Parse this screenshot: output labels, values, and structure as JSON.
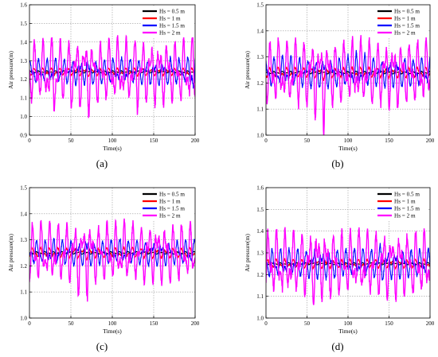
{
  "chart_data": [
    {
      "panel_label": "(a)",
      "type": "line",
      "xlabel": "Time(s)",
      "ylabel": "Air pressure(m)",
      "xlim": [
        0,
        200
      ],
      "ylim": [
        0.9,
        1.6
      ],
      "xticks": [
        0,
        50,
        100,
        150,
        200
      ],
      "yticks": [
        0.9,
        1.0,
        1.1,
        1.2,
        1.3,
        1.4,
        1.5,
        1.6
      ],
      "grid": true,
      "legend_position": "top-right",
      "series": [
        {
          "name": "Hs = 0.5 m",
          "color": "#000000",
          "mean": 1.24,
          "amp": 0.006,
          "x": [
            0,
            10,
            20,
            30,
            40,
            50,
            60,
            70,
            80,
            90,
            100,
            110,
            120,
            130,
            140,
            150,
            160,
            170,
            180,
            190,
            200
          ],
          "values": [
            1.24,
            1.241,
            1.239,
            1.242,
            1.238,
            1.241,
            1.24,
            1.242,
            1.238,
            1.241,
            1.24,
            1.239,
            1.242,
            1.24,
            1.241,
            1.239,
            1.241,
            1.24,
            1.242,
            1.239,
            1.24
          ]
        },
        {
          "name": "Hs = 1 m",
          "color": "#ff0000",
          "mean": 1.24,
          "amp": 0.02,
          "x": [
            0,
            10,
            20,
            30,
            40,
            50,
            60,
            70,
            80,
            90,
            100,
            110,
            120,
            130,
            140,
            150,
            160,
            170,
            180,
            190,
            200
          ],
          "values": [
            1.25,
            1.22,
            1.26,
            1.21,
            1.26,
            1.22,
            1.25,
            1.21,
            1.26,
            1.22,
            1.25,
            1.22,
            1.26,
            1.21,
            1.25,
            1.22,
            1.26,
            1.22,
            1.25,
            1.21,
            1.24
          ]
        },
        {
          "name": "Hs = 1.5 m",
          "color": "#0000ff",
          "mean": 1.24,
          "amp": 0.07,
          "x": [
            0,
            10,
            20,
            30,
            40,
            50,
            60,
            70,
            80,
            90,
            100,
            110,
            120,
            130,
            140,
            150,
            160,
            170,
            180,
            190,
            200
          ],
          "values": [
            1.26,
            1.16,
            1.3,
            1.13,
            1.32,
            1.15,
            1.35,
            1.13,
            1.31,
            1.16,
            1.33,
            1.14,
            1.34,
            1.15,
            1.32,
            1.16,
            1.31,
            1.14,
            1.33,
            1.17,
            1.06
          ]
        },
        {
          "name": "Hs = 2 m",
          "color": "#ff00ff",
          "mean": 1.24,
          "amp": 0.18,
          "x": [
            0,
            10,
            20,
            30,
            40,
            50,
            60,
            70,
            80,
            90,
            100,
            110,
            120,
            130,
            140,
            150,
            160,
            170,
            180,
            190,
            200
          ],
          "values": [
            1.3,
            1.12,
            1.45,
            0.9,
            1.4,
            1.0,
            1.51,
            0.92,
            1.39,
            1.08,
            1.45,
            1.1,
            1.36,
            0.96,
            1.4,
            1.05,
            1.42,
            1.08,
            1.43,
            1.1,
            1.0
          ]
        }
      ]
    },
    {
      "panel_label": "(b)",
      "type": "line",
      "xlabel": "Time(s)",
      "ylabel": "Air pressure(m)",
      "xlim": [
        0,
        200
      ],
      "ylim": [
        1.0,
        1.5
      ],
      "xticks": [
        0,
        50,
        100,
        150,
        200
      ],
      "yticks": [
        1.0,
        1.1,
        1.2,
        1.3,
        1.4,
        1.5
      ],
      "grid": true,
      "legend_position": "top-right",
      "series": [
        {
          "name": "Hs = 0.5 m",
          "color": "#000000",
          "mean": 1.24,
          "amp": 0.005,
          "x": [
            0,
            10,
            20,
            30,
            40,
            50,
            60,
            70,
            80,
            90,
            100,
            110,
            120,
            130,
            140,
            150,
            160,
            170,
            180,
            190,
            200
          ],
          "values": [
            1.24,
            1.241,
            1.239,
            1.242,
            1.238,
            1.241,
            1.24,
            1.242,
            1.238,
            1.241,
            1.24,
            1.239,
            1.242,
            1.24,
            1.241,
            1.239,
            1.241,
            1.24,
            1.242,
            1.239,
            1.24
          ]
        },
        {
          "name": "Hs = 1 m",
          "color": "#ff0000",
          "mean": 1.24,
          "amp": 0.02,
          "x": [
            0,
            10,
            20,
            30,
            40,
            50,
            60,
            70,
            80,
            90,
            100,
            110,
            120,
            130,
            140,
            150,
            160,
            170,
            180,
            190,
            200
          ],
          "values": [
            1.25,
            1.22,
            1.26,
            1.22,
            1.26,
            1.22,
            1.25,
            1.21,
            1.26,
            1.22,
            1.25,
            1.22,
            1.26,
            1.22,
            1.25,
            1.22,
            1.26,
            1.22,
            1.25,
            1.22,
            1.24
          ]
        },
        {
          "name": "Hs = 1.5 m",
          "color": "#0000ff",
          "mean": 1.24,
          "amp": 0.06,
          "x": [
            0,
            10,
            20,
            30,
            40,
            50,
            60,
            70,
            80,
            90,
            100,
            110,
            120,
            130,
            140,
            150,
            160,
            170,
            180,
            190,
            200
          ],
          "values": [
            1.27,
            1.18,
            1.31,
            1.16,
            1.3,
            1.17,
            1.32,
            1.15,
            1.3,
            1.17,
            1.31,
            1.16,
            1.32,
            1.17,
            1.3,
            1.18,
            1.31,
            1.16,
            1.3,
            1.18,
            1.24
          ]
        },
        {
          "name": "Hs = 2 m",
          "color": "#ff00ff",
          "mean": 1.24,
          "amp": 0.13,
          "x": [
            0,
            10,
            20,
            30,
            40,
            50,
            60,
            70,
            80,
            90,
            100,
            110,
            120,
            130,
            140,
            150,
            160,
            170,
            180,
            190,
            200
          ],
          "values": [
            1.33,
            1.11,
            1.38,
            1.06,
            1.41,
            1.12,
            1.43,
            1.0,
            1.38,
            1.1,
            1.37,
            1.12,
            1.38,
            1.1,
            1.37,
            1.12,
            1.39,
            1.11,
            1.37,
            1.13,
            1.28
          ]
        }
      ]
    },
    {
      "panel_label": "(c)",
      "type": "line",
      "xlabel": "Time(s)",
      "ylabel": "Air pressure(m)",
      "xlim": [
        0,
        200
      ],
      "ylim": [
        1.0,
        1.5
      ],
      "xticks": [
        0,
        50,
        100,
        150,
        200
      ],
      "yticks": [
        1.0,
        1.1,
        1.2,
        1.3,
        1.4,
        1.5
      ],
      "grid": true,
      "legend_position": "top-right",
      "series": [
        {
          "name": "Hs = 0.5 m",
          "color": "#000000",
          "mean": 1.25,
          "amp": 0.005,
          "x": [
            0,
            10,
            20,
            30,
            40,
            50,
            60,
            70,
            80,
            90,
            100,
            110,
            120,
            130,
            140,
            150,
            160,
            170,
            180,
            190,
            200
          ],
          "values": [
            1.25,
            1.251,
            1.249,
            1.252,
            1.248,
            1.251,
            1.25,
            1.252,
            1.248,
            1.251,
            1.25,
            1.249,
            1.252,
            1.25,
            1.251,
            1.249,
            1.251,
            1.25,
            1.252,
            1.249,
            1.25
          ]
        },
        {
          "name": "Hs = 1 m",
          "color": "#ff0000",
          "mean": 1.25,
          "amp": 0.02,
          "x": [
            0,
            10,
            20,
            30,
            40,
            50,
            60,
            70,
            80,
            90,
            100,
            110,
            120,
            130,
            140,
            150,
            160,
            170,
            180,
            190,
            200
          ],
          "values": [
            1.26,
            1.23,
            1.27,
            1.23,
            1.27,
            1.23,
            1.26,
            1.22,
            1.27,
            1.23,
            1.26,
            1.23,
            1.27,
            1.23,
            1.26,
            1.23,
            1.27,
            1.23,
            1.26,
            1.23,
            1.25
          ]
        },
        {
          "name": "Hs = 1.5 m",
          "color": "#0000ff",
          "mean": 1.25,
          "amp": 0.05,
          "x": [
            0,
            10,
            20,
            30,
            40,
            50,
            60,
            70,
            80,
            90,
            100,
            110,
            120,
            130,
            140,
            150,
            160,
            170,
            180,
            190,
            200
          ],
          "values": [
            1.28,
            1.2,
            1.3,
            1.19,
            1.29,
            1.19,
            1.3,
            1.14,
            1.29,
            1.2,
            1.3,
            1.19,
            1.29,
            1.2,
            1.3,
            1.19,
            1.29,
            1.2,
            1.3,
            1.2,
            1.26
          ]
        },
        {
          "name": "Hs = 2 m",
          "color": "#ff00ff",
          "mean": 1.25,
          "amp": 0.12,
          "x": [
            0,
            10,
            20,
            30,
            40,
            50,
            60,
            70,
            80,
            90,
            100,
            110,
            120,
            130,
            140,
            150,
            160,
            170,
            180,
            190,
            200
          ],
          "values": [
            1.37,
            1.15,
            1.33,
            1.1,
            1.38,
            1.14,
            1.44,
            1.06,
            1.36,
            1.13,
            1.38,
            1.13,
            1.37,
            1.14,
            1.38,
            1.15,
            1.36,
            1.14,
            1.35,
            1.16,
            1.32
          ]
        }
      ]
    },
    {
      "panel_label": "(d)",
      "type": "line",
      "xlabel": "Time(s)",
      "ylabel": "Air pressure(m)",
      "xlim": [
        0,
        200
      ],
      "ylim": [
        1.0,
        1.6
      ],
      "xticks": [
        0,
        50,
        100,
        150,
        200
      ],
      "yticks": [
        1.0,
        1.1,
        1.2,
        1.3,
        1.4,
        1.5,
        1.6
      ],
      "grid": true,
      "legend_position": "top-right",
      "series": [
        {
          "name": "Hs = 0.5 m",
          "color": "#000000",
          "mean": 1.25,
          "amp": 0.005,
          "x": [
            0,
            10,
            20,
            30,
            40,
            50,
            60,
            70,
            80,
            90,
            100,
            110,
            120,
            130,
            140,
            150,
            160,
            170,
            180,
            190,
            200
          ],
          "values": [
            1.25,
            1.251,
            1.249,
            1.252,
            1.248,
            1.251,
            1.25,
            1.252,
            1.248,
            1.251,
            1.25,
            1.249,
            1.252,
            1.25,
            1.251,
            1.249,
            1.251,
            1.25,
            1.252,
            1.249,
            1.25
          ]
        },
        {
          "name": "Hs = 1 m",
          "color": "#ff0000",
          "mean": 1.25,
          "amp": 0.02,
          "x": [
            0,
            10,
            20,
            30,
            40,
            50,
            60,
            70,
            80,
            90,
            100,
            110,
            120,
            130,
            140,
            150,
            160,
            170,
            180,
            190,
            200
          ],
          "values": [
            1.26,
            1.23,
            1.27,
            1.23,
            1.27,
            1.23,
            1.26,
            1.22,
            1.27,
            1.23,
            1.26,
            1.23,
            1.27,
            1.23,
            1.26,
            1.23,
            1.27,
            1.23,
            1.26,
            1.23,
            1.25
          ]
        },
        {
          "name": "Hs = 1.5 m",
          "color": "#0000ff",
          "mean": 1.25,
          "amp": 0.07,
          "x": [
            0,
            10,
            20,
            30,
            40,
            50,
            60,
            70,
            80,
            90,
            100,
            110,
            120,
            130,
            140,
            150,
            160,
            170,
            180,
            190,
            200
          ],
          "values": [
            1.3,
            1.19,
            1.33,
            1.18,
            1.34,
            1.17,
            1.36,
            1.15,
            1.33,
            1.18,
            1.35,
            1.17,
            1.34,
            1.18,
            1.38,
            1.17,
            1.33,
            1.18,
            1.34,
            1.19,
            1.28
          ]
        },
        {
          "name": "Hs = 2 m",
          "color": "#ff00ff",
          "mean": 1.25,
          "amp": 0.16,
          "x": [
            0,
            10,
            20,
            30,
            40,
            50,
            60,
            70,
            80,
            90,
            100,
            110,
            120,
            130,
            140,
            150,
            160,
            170,
            180,
            190,
            200
          ],
          "values": [
            1.4,
            1.13,
            1.45,
            1.08,
            1.42,
            1.1,
            1.55,
            1.03,
            1.41,
            1.1,
            1.43,
            1.11,
            1.4,
            1.1,
            1.42,
            1.12,
            1.41,
            1.1,
            1.43,
            1.12,
            1.35
          ]
        }
      ]
    }
  ]
}
